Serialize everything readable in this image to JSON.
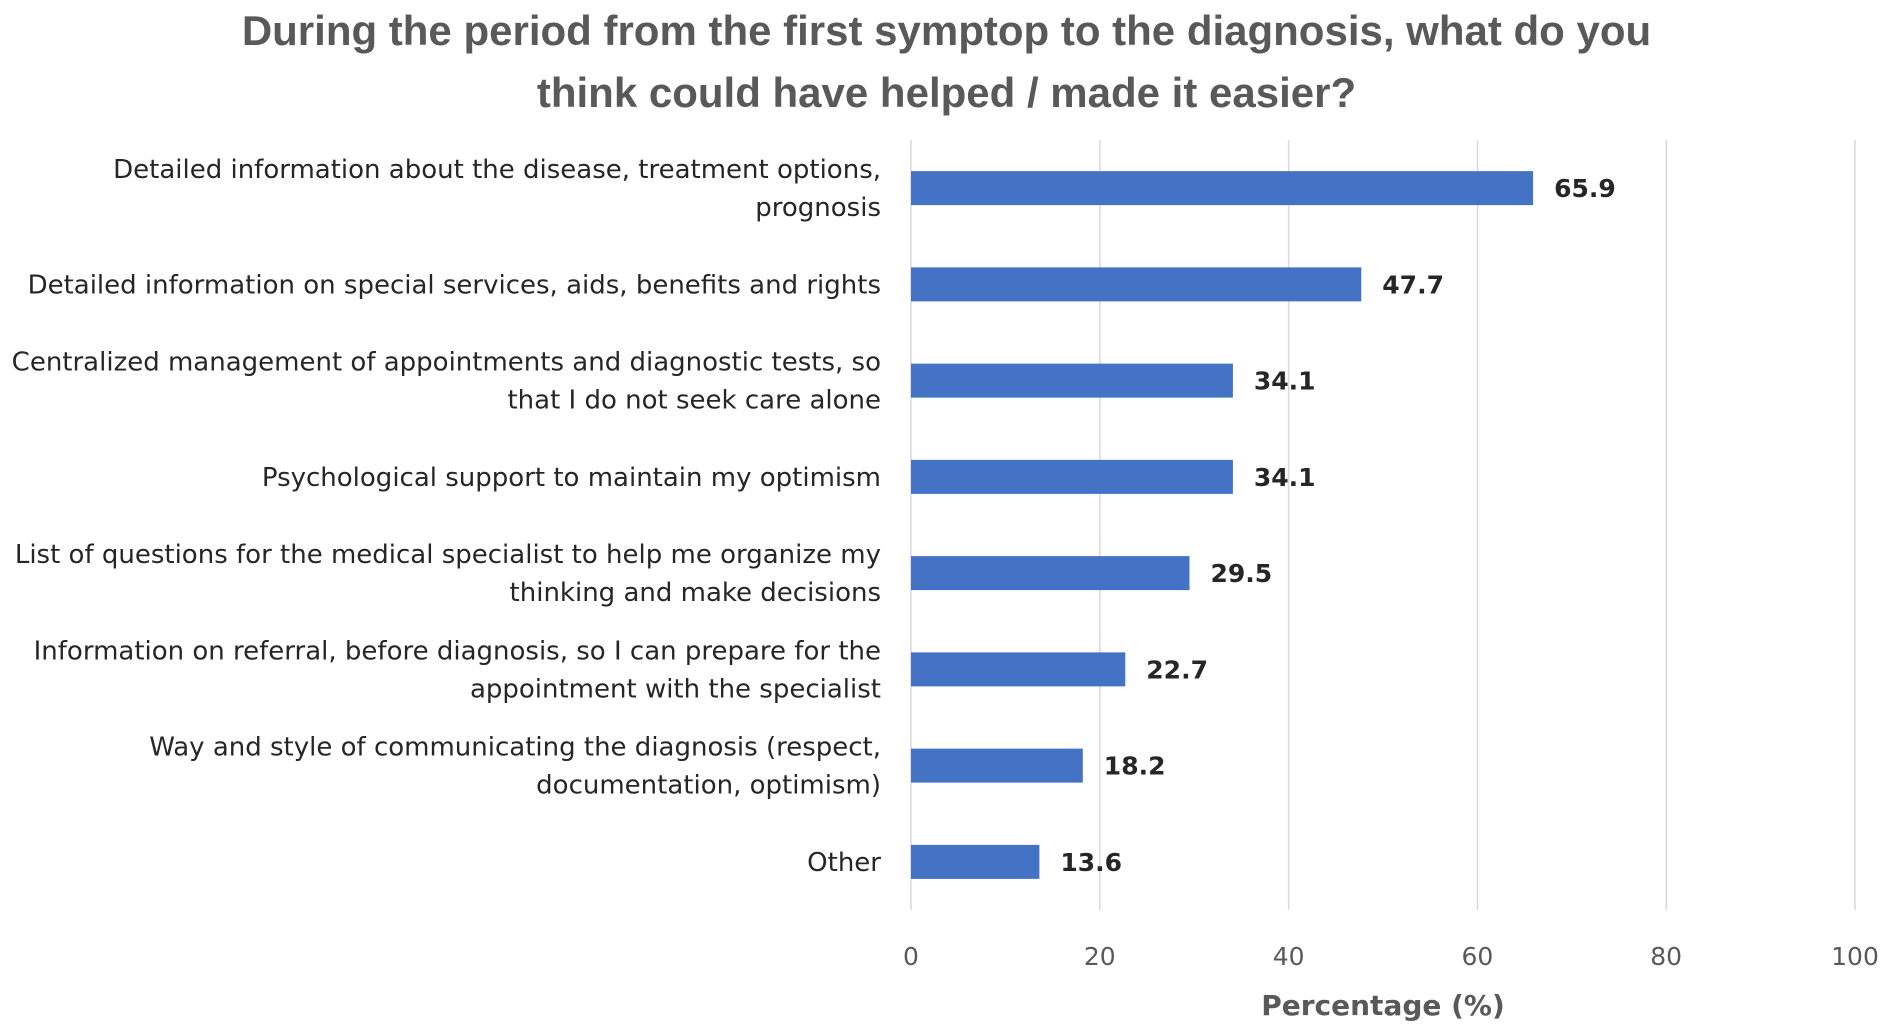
{
  "chart_data": {
    "type": "bar",
    "orientation": "horizontal",
    "title_lines": [
      "During the period from the first symptop to the diagnosis, what do you",
      "think could have helped / made it easier?"
    ],
    "categories": [
      [
        "Detailed information about the disease, treatment options,",
        "prognosis"
      ],
      [
        "Detailed information on special services, aids, benefits and rights"
      ],
      [
        "Centralized management of appointments and diagnostic tests, so",
        "that I do not seek care alone"
      ],
      [
        "Psychological support to maintain my optimism"
      ],
      [
        "List of questions for the medical specialist to help me organize my",
        "thinking and make decisions"
      ],
      [
        "Information on referral, before diagnosis, so I can prepare for the",
        "appointment with the specialist"
      ],
      [
        "Way and style of communicating the diagnosis (respect,",
        "documentation, optimism)"
      ],
      [
        "Other"
      ]
    ],
    "values": [
      65.9,
      47.7,
      34.1,
      34.1,
      29.5,
      22.7,
      18.2,
      13.6
    ],
    "value_labels": [
      "65.9",
      "47.7",
      "34.1",
      "34.1",
      "29.5",
      "22.7",
      "18.2",
      "13.6"
    ],
    "xlabel": "Percentage (%)",
    "ylabel": "",
    "xlim": [
      0,
      100
    ],
    "xticks": [
      0,
      20,
      40,
      60,
      80,
      100
    ],
    "grid": true,
    "bar_color": "#4472C4",
    "grid_color": "#D9D9D9"
  }
}
